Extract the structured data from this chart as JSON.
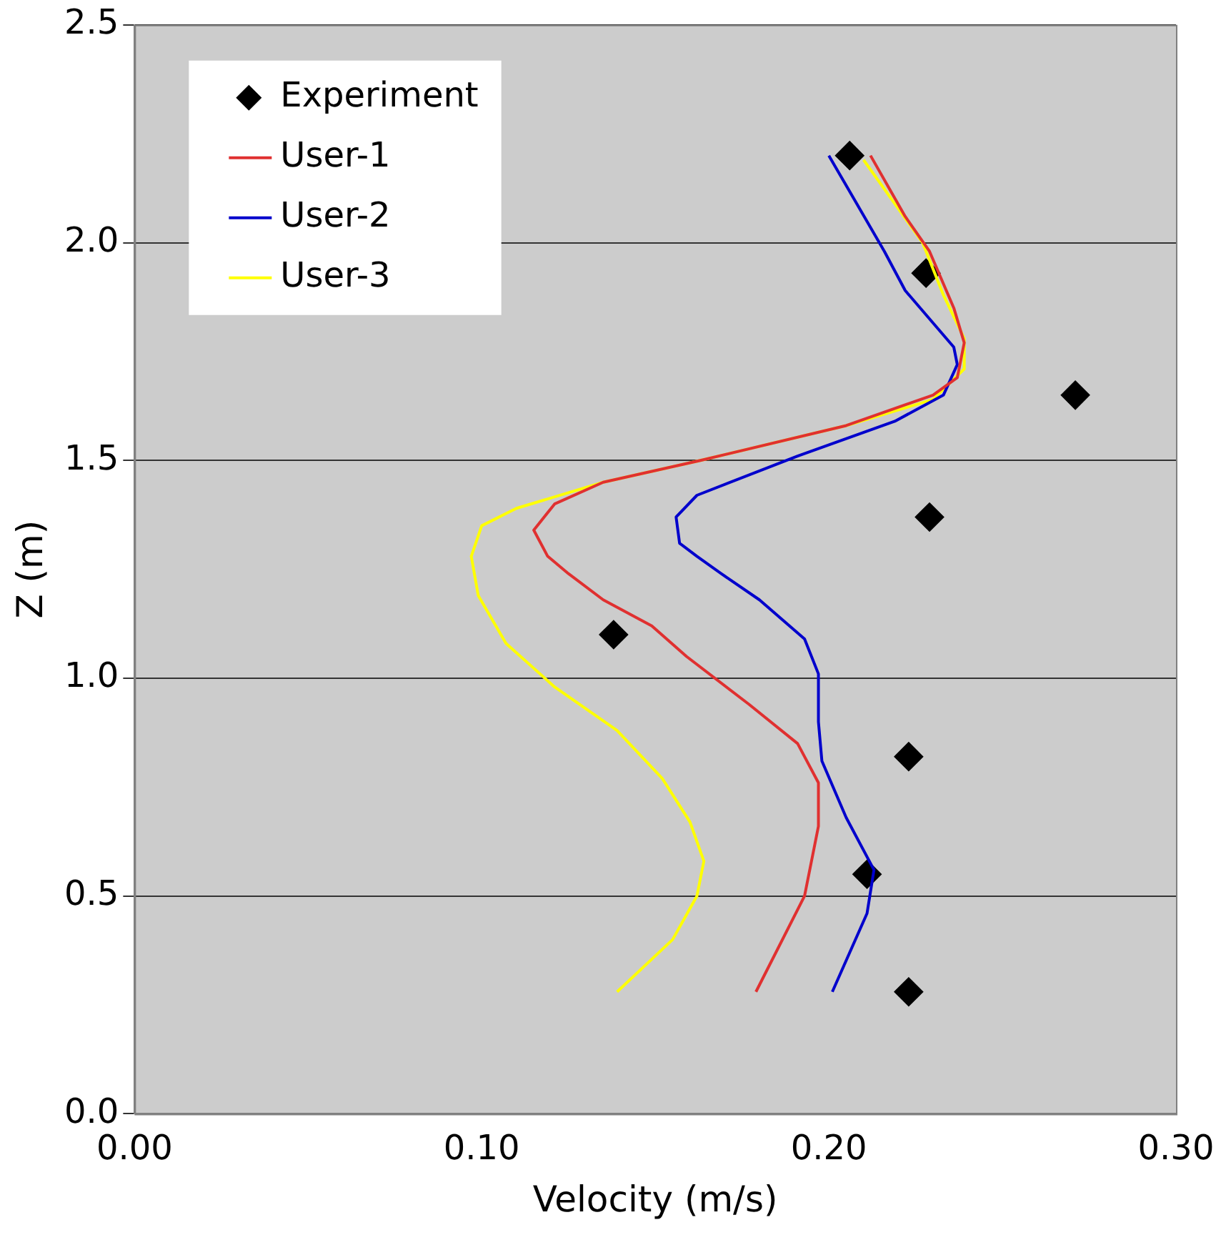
{
  "chart_data": {
    "type": "line",
    "xlabel": "Velocity (m/s)",
    "ylabel": "Z (m)",
    "xlim": [
      0,
      0.3
    ],
    "xticks": [
      {
        "value": 0,
        "label": "0.00"
      },
      {
        "value": 0.1,
        "label": "0.10"
      },
      {
        "value": 0.2,
        "label": "0.20"
      },
      {
        "value": 0.3,
        "label": "0.30"
      }
    ],
    "ylim": [
      0,
      2.5
    ],
    "yticks": [
      {
        "value": 0,
        "label": "0.0"
      },
      0.5,
      {
        "value": 1,
        "label": "1.0"
      },
      1.5,
      {
        "value": 2,
        "label": "2.0"
      },
      2.5
    ],
    "grid": "y",
    "legend": "top left",
    "line_style": "solid",
    "series": [
      {
        "name": "Experiment",
        "type": "scatter",
        "marker": "diamond",
        "color": "#000000",
        "x": [
          0.206,
          0.228,
          0.271,
          0.229,
          0.138,
          0.223,
          0.211,
          0.223
        ],
        "values": [
          2.2,
          1.93,
          1.65,
          1.37,
          1.1,
          0.82,
          0.55,
          0.28
        ]
      },
      {
        "name": "User-1",
        "type": "line",
        "marker": "none",
        "color": "#e03030",
        "x": [
          0.179,
          0.193,
          0.197,
          0.197,
          0.191,
          0.177,
          0.159,
          0.149,
          0.135,
          0.125,
          0.119,
          0.115,
          0.121,
          0.135,
          0.163,
          0.205,
          0.23,
          0.237,
          0.239,
          0.236,
          0.229,
          0.222,
          0.212
        ],
        "values": [
          0.28,
          0.5,
          0.66,
          0.76,
          0.85,
          0.94,
          1.05,
          1.12,
          1.18,
          1.24,
          1.28,
          1.34,
          1.4,
          1.45,
          1.5,
          1.58,
          1.65,
          1.69,
          1.77,
          1.85,
          1.98,
          2.06,
          2.2
        ]
      },
      {
        "name": "User-2",
        "type": "line",
        "marker": "none",
        "color": "#0000cc",
        "x": [
          0.201,
          0.211,
          0.213,
          0.205,
          0.198,
          0.197,
          0.197,
          0.193,
          0.18,
          0.169,
          0.162,
          0.157,
          0.156,
          0.162,
          0.191,
          0.219,
          0.233,
          0.237,
          0.236,
          0.222,
          0.216,
          0.2
        ],
        "values": [
          0.28,
          0.46,
          0.56,
          0.68,
          0.81,
          0.9,
          1.01,
          1.09,
          1.18,
          1.24,
          1.28,
          1.31,
          1.37,
          1.42,
          1.51,
          1.59,
          1.65,
          1.72,
          1.76,
          1.89,
          1.98,
          2.2
        ]
      },
      {
        "name": "User-3",
        "type": "line",
        "marker": "none",
        "color": "#ffff00",
        "x": [
          0.139,
          0.155,
          0.162,
          0.164,
          0.16,
          0.152,
          0.139,
          0.121,
          0.107,
          0.099,
          0.097,
          0.1,
          0.11,
          0.135,
          0.163,
          0.205,
          0.23,
          0.239,
          0.239,
          0.233,
          0.227,
          0.21
        ],
        "values": [
          0.28,
          0.4,
          0.5,
          0.58,
          0.67,
          0.77,
          0.88,
          0.98,
          1.08,
          1.19,
          1.28,
          1.35,
          1.39,
          1.45,
          1.5,
          1.58,
          1.64,
          1.71,
          1.78,
          1.88,
          2.0,
          2.19
        ]
      }
    ]
  }
}
